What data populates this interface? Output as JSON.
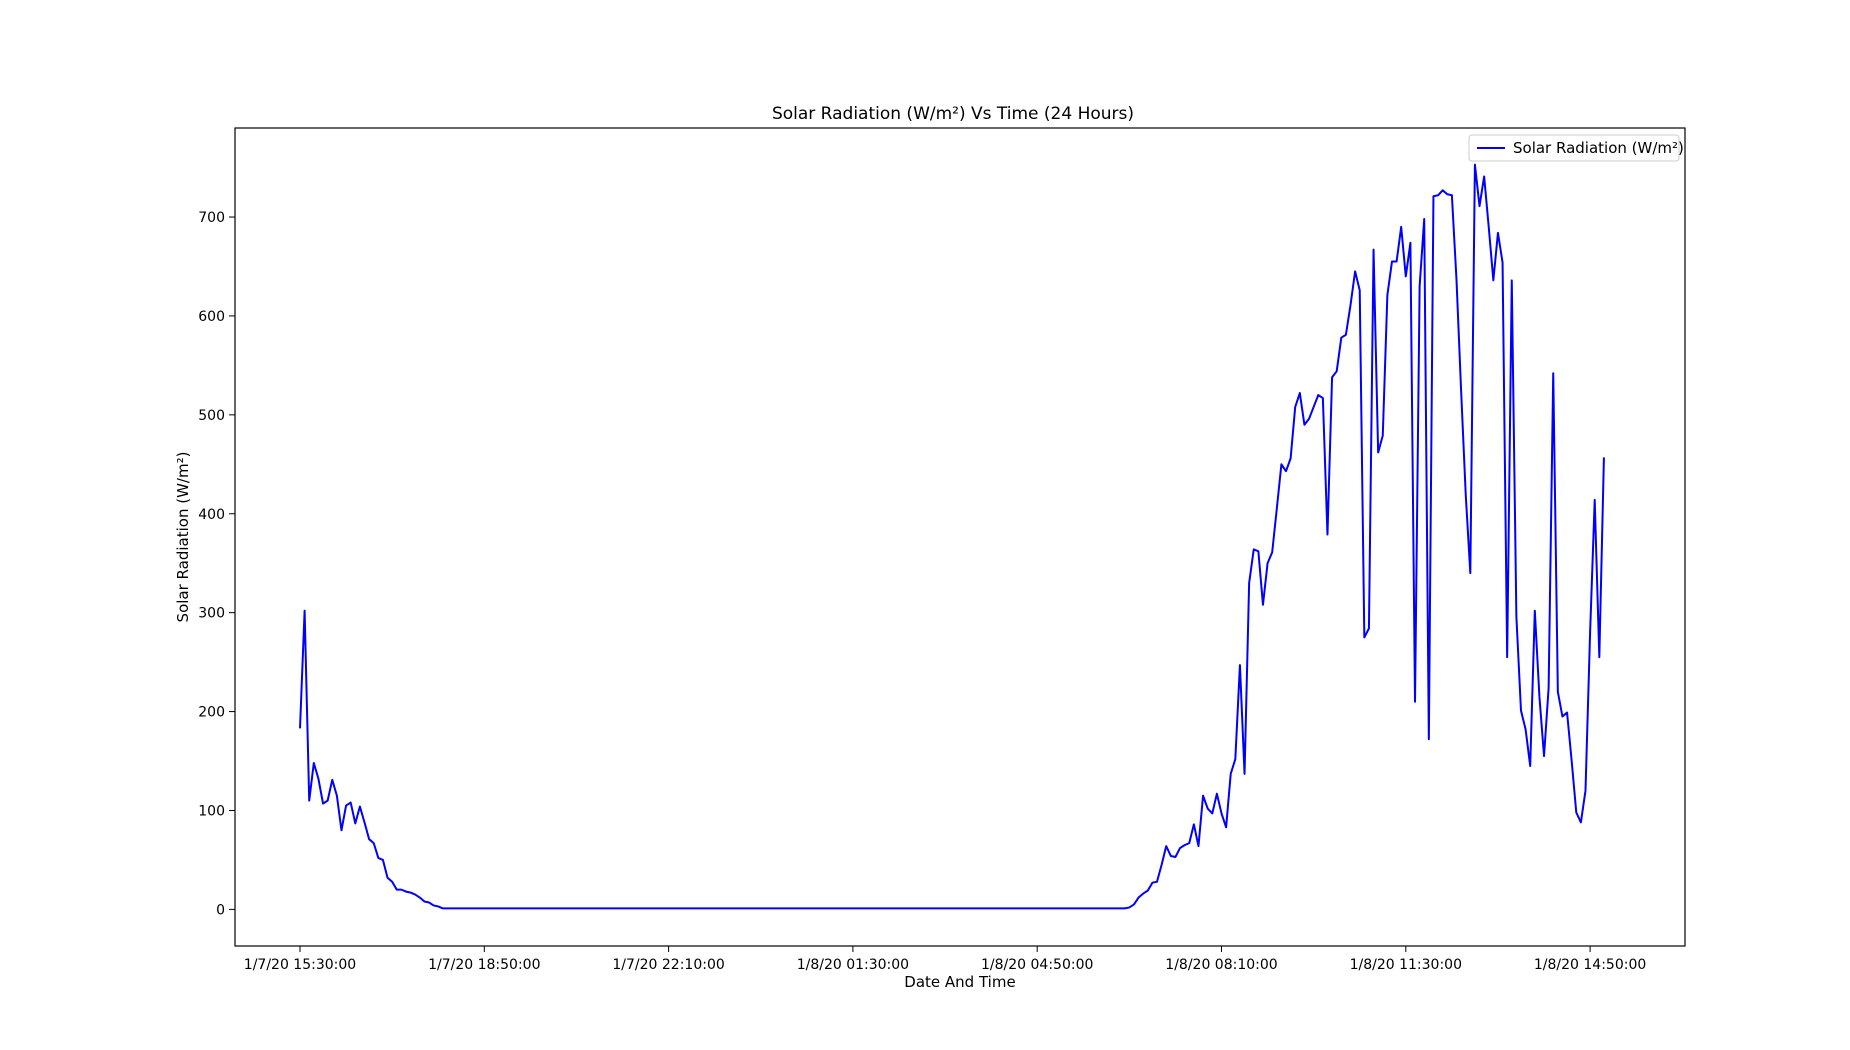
{
  "chart_data": {
    "type": "line",
    "title": "Solar Radiation (W/m²) Vs Time (24 Hours)",
    "xlabel": "Date And Time",
    "ylabel": "Solar Radiation (W/m²)",
    "x_tick_labels": [
      "1/7/20 15:30:00",
      "1/7/20 18:50:00",
      "1/7/20 22:10:00",
      "1/8/20 01:30:00",
      "1/8/20 04:50:00",
      "1/8/20 08:10:00",
      "1/8/20 11:30:00",
      "1/8/20 14:50:00"
    ],
    "y_ticks": [
      0,
      100,
      200,
      300,
      400,
      500,
      600,
      700
    ],
    "ylim": [
      -37,
      790
    ],
    "x_interval_minutes": 5,
    "x_start": "1/7/20 15:30:00",
    "legend_position": "top-right",
    "grid": false,
    "series": [
      {
        "name": "Solar Radiation (W/m²)",
        "color": "#0000ff",
        "values": [
          183,
          302,
          110,
          148,
          132,
          107,
          110,
          131,
          115,
          80,
          105,
          108,
          87,
          104,
          88,
          71,
          67,
          52,
          50,
          32,
          28,
          20,
          20,
          18,
          17,
          15,
          12,
          8,
          7,
          4,
          3,
          1,
          1,
          1,
          1,
          1,
          1,
          1,
          1,
          1,
          1,
          1,
          1,
          1,
          1,
          1,
          1,
          1,
          1,
          1,
          1,
          1,
          1,
          1,
          1,
          1,
          1,
          1,
          1,
          1,
          1,
          1,
          1,
          1,
          1,
          1,
          1,
          1,
          1,
          1,
          1,
          1,
          1,
          1,
          1,
          1,
          1,
          1,
          1,
          1,
          1,
          1,
          1,
          1,
          1,
          1,
          1,
          1,
          1,
          1,
          1,
          1,
          1,
          1,
          1,
          1,
          1,
          1,
          1,
          1,
          1,
          1,
          1,
          1,
          1,
          1,
          1,
          1,
          1,
          1,
          1,
          1,
          1,
          1,
          1,
          1,
          1,
          1,
          1,
          1,
          1,
          1,
          1,
          1,
          1,
          1,
          1,
          1,
          1,
          1,
          1,
          1,
          1,
          1,
          1,
          1,
          1,
          1,
          1,
          1,
          1,
          1,
          1,
          1,
          1,
          1,
          1,
          1,
          1,
          1,
          1,
          1,
          1,
          1,
          1,
          1,
          1,
          1,
          1,
          1,
          1,
          1,
          1,
          1,
          1,
          1,
          1,
          1,
          1,
          1,
          1,
          1,
          1,
          1,
          1,
          1,
          1,
          1,
          1,
          1,
          2,
          5,
          12,
          16,
          19,
          27,
          28,
          45,
          64,
          54,
          53,
          62,
          65,
          67,
          86,
          64,
          115,
          102,
          97,
          117,
          97,
          83,
          137,
          152,
          247,
          137,
          330,
          364,
          362,
          308,
          350,
          361,
          405,
          450,
          443,
          456,
          508,
          522,
          490,
          496,
          508,
          520,
          517,
          379,
          538,
          544,
          578,
          581,
          611,
          645,
          626,
          275,
          284,
          667,
          462,
          479,
          621,
          655,
          655,
          690,
          640,
          674,
          210,
          630,
          698,
          172,
          721,
          722,
          727,
          723,
          722,
          637,
          525,
          420,
          340,
          753,
          711,
          741,
          690,
          636,
          684,
          654,
          255,
          636,
          296,
          201,
          182,
          145,
          302,
          215,
          155,
          224,
          542,
          220,
          195,
          199,
          150,
          98,
          88,
          120,
          280,
          414,
          255,
          457
        ]
      }
    ]
  }
}
